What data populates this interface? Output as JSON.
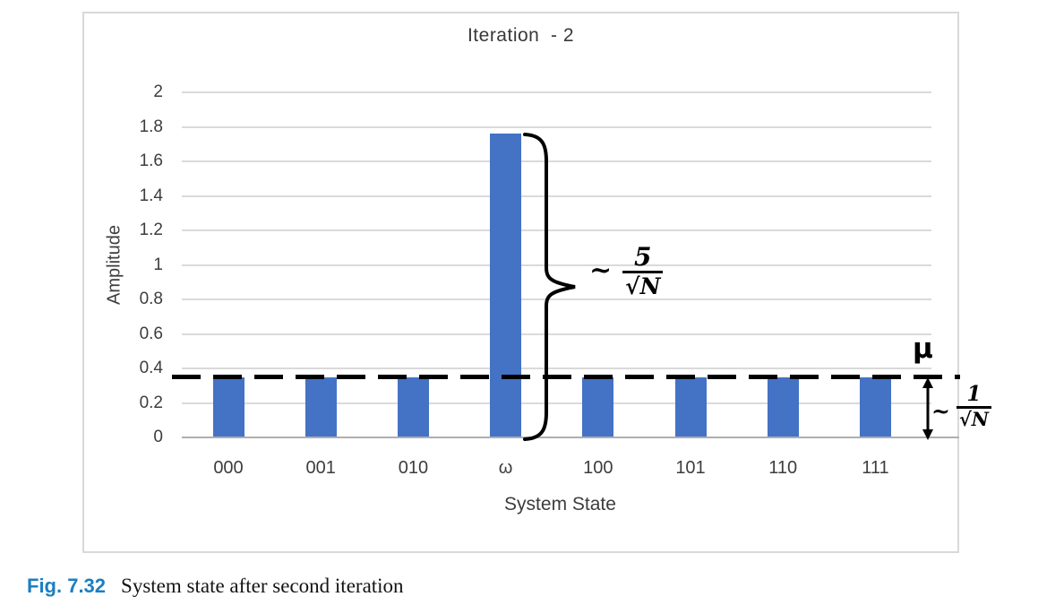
{
  "figure": {
    "caption_label": "Fig. 7.32",
    "caption_text": "System state after second iteration"
  },
  "chart_data": {
    "type": "bar",
    "title": "Iteration  - 2",
    "xlabel": "System State",
    "ylabel": "Amplitude",
    "categories": [
      "000",
      "001",
      "010",
      "ω",
      "100",
      "101",
      "110",
      "111"
    ],
    "values": [
      0.35,
      0.35,
      0.35,
      1.76,
      0.35,
      0.35,
      0.35,
      0.35
    ],
    "ylim": [
      0,
      2
    ],
    "ytick_step": 0.2,
    "yticks": [
      "0",
      "0.2",
      "0.4",
      "0.6",
      "0.8",
      "1",
      "1.2",
      "1.4",
      "1.6",
      "1.8",
      "2"
    ],
    "grid": true,
    "legend": "none",
    "bar_color": "#4472c4",
    "gridline_color": "#dadada",
    "annotations": {
      "mean_line": {
        "value": 0.35,
        "label": "μ",
        "style": "dashed-black"
      },
      "brace": {
        "applies_to": "ω",
        "tilde": "~",
        "numerator": "5",
        "radical": "√",
        "radicand": "N"
      },
      "gap": {
        "applies_to": "mean-to-axis",
        "tilde": "~",
        "numerator": "1",
        "radical": "√",
        "radicand": "N"
      }
    }
  }
}
